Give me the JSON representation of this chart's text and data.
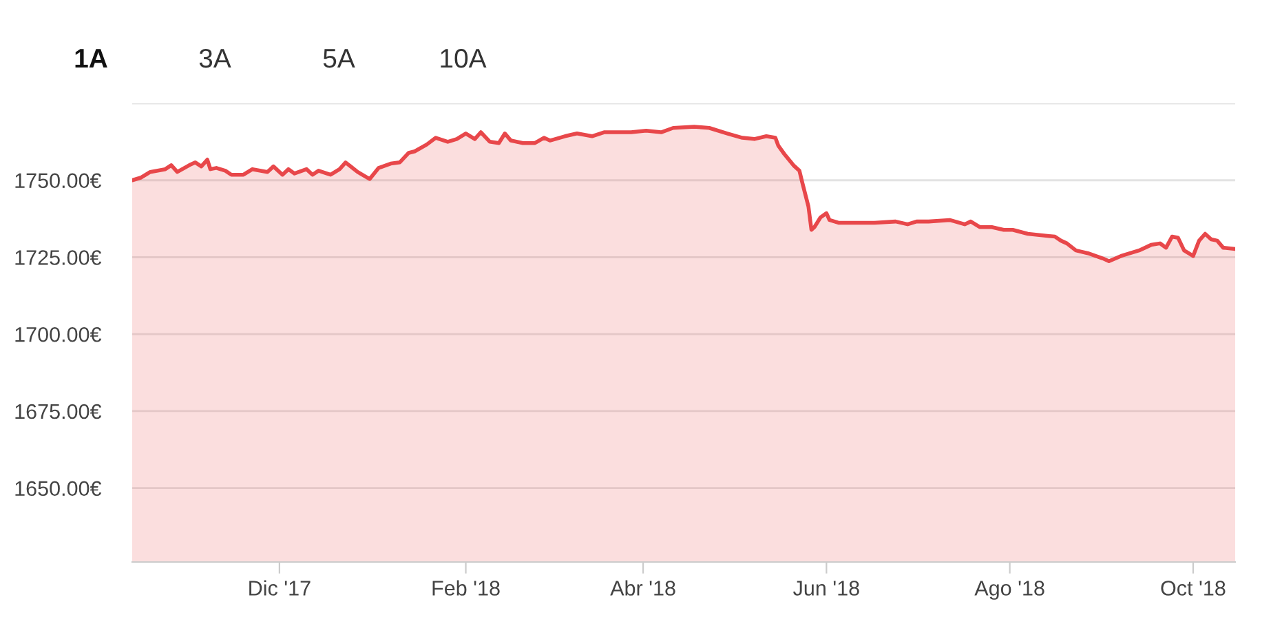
{
  "chart_data": {
    "type": "line",
    "annotations": [
      "1A",
      "3A",
      "5A",
      "10A"
    ],
    "x": [
      "2017-10-13",
      "2017-10-16",
      "2017-10-19",
      "2017-10-24",
      "2017-10-26",
      "2017-10-28",
      "2017-11-01",
      "2017-11-03",
      "2017-11-05",
      "2017-11-07",
      "2017-11-08",
      "2017-11-10",
      "2017-11-13",
      "2017-11-15",
      "2017-11-19",
      "2017-11-22",
      "2017-11-27",
      "2017-11-29",
      "2017-12-02",
      "2017-12-04",
      "2017-12-06",
      "2017-12-10",
      "2017-12-12",
      "2017-12-14",
      "2017-12-18",
      "2017-12-21",
      "2017-12-23",
      "2017-12-27",
      "2017-12-31",
      "2018-01-03",
      "2018-01-07",
      "2018-01-10",
      "2018-01-13",
      "2018-01-15",
      "2018-01-19",
      "2018-01-22",
      "2018-01-26",
      "2018-01-29",
      "2018-02-01",
      "2018-02-04",
      "2018-02-06",
      "2018-02-09",
      "2018-02-12",
      "2018-02-14",
      "2018-02-16",
      "2018-02-20",
      "2018-02-24",
      "2018-02-27",
      "2018-03-01",
      "2018-03-06",
      "2018-03-10",
      "2018-03-15",
      "2018-03-19",
      "2018-03-24",
      "2018-03-28",
      "2018-04-02",
      "2018-04-07",
      "2018-04-11",
      "2018-04-18",
      "2018-04-23",
      "2018-04-29",
      "2018-05-04",
      "2018-05-08",
      "2018-05-12",
      "2018-05-15",
      "2018-05-16",
      "2018-05-18",
      "2018-05-21",
      "2018-05-23",
      "2018-05-24",
      "2018-05-26",
      "2018-05-27",
      "2018-05-28",
      "2018-05-30",
      "2018-06-01",
      "2018-06-02",
      "2018-06-05",
      "2018-06-10",
      "2018-06-17",
      "2018-06-24",
      "2018-06-28",
      "2018-07-01",
      "2018-07-05",
      "2018-07-12",
      "2018-07-17",
      "2018-07-19",
      "2018-07-22",
      "2018-07-26",
      "2018-07-30",
      "2018-08-02",
      "2018-08-07",
      "2018-08-16",
      "2018-08-18",
      "2018-08-20",
      "2018-08-23",
      "2018-08-27",
      "2018-09-01",
      "2018-09-03",
      "2018-09-07",
      "2018-09-10",
      "2018-09-13",
      "2018-09-17",
      "2018-09-20",
      "2018-09-22",
      "2018-09-24",
      "2018-09-26",
      "2018-09-28",
      "2018-10-01",
      "2018-10-03",
      "2018-10-05",
      "2018-10-07",
      "2018-10-09",
      "2018-10-11",
      "2018-10-15"
    ],
    "series": [
      {
        "color": "#e8474a",
        "values": [
          1750.0,
          1750.9,
          1752.7,
          1753.6,
          1754.9,
          1752.7,
          1754.9,
          1755.8,
          1754.5,
          1756.7,
          1753.6,
          1754.0,
          1753.1,
          1751.8,
          1751.8,
          1753.6,
          1752.7,
          1754.5,
          1751.8,
          1753.6,
          1752.2,
          1753.6,
          1751.8,
          1753.1,
          1751.8,
          1753.6,
          1755.8,
          1752.7,
          1750.4,
          1754.0,
          1755.4,
          1755.8,
          1758.9,
          1759.4,
          1761.6,
          1763.8,
          1762.5,
          1763.4,
          1765.2,
          1763.4,
          1765.6,
          1762.5,
          1762.1,
          1765.2,
          1762.9,
          1762.1,
          1762.1,
          1763.8,
          1762.9,
          1764.3,
          1765.2,
          1764.3,
          1765.6,
          1765.6,
          1765.6,
          1766.1,
          1765.6,
          1767.0,
          1767.4,
          1767.0,
          1765.2,
          1763.8,
          1763.4,
          1764.3,
          1763.8,
          1761.2,
          1758.5,
          1754.9,
          1753.1,
          1749.1,
          1741.5,
          1733.9,
          1734.8,
          1737.9,
          1739.3,
          1737.1,
          1736.2,
          1736.2,
          1736.2,
          1736.6,
          1735.7,
          1736.6,
          1736.6,
          1737.1,
          1735.7,
          1736.6,
          1734.8,
          1734.8,
          1733.9,
          1733.9,
          1732.6,
          1731.7,
          1730.4,
          1729.5,
          1727.2,
          1726.3,
          1724.6,
          1723.7,
          1725.4,
          1726.3,
          1727.2,
          1729.0,
          1729.5,
          1728.1,
          1731.7,
          1731.3,
          1727.2,
          1725.4,
          1730.4,
          1732.6,
          1730.8,
          1730.4,
          1728.1,
          1727.7
        ]
      }
    ],
    "xlim": [
      "2017-10-13",
      "2018-10-15"
    ],
    "xticks": [
      {
        "value": "2017-12-01",
        "label": "Dic '17"
      },
      {
        "value": "2018-02-01",
        "label": "Feb '18"
      },
      {
        "value": "2018-04-01",
        "label": "Abr '18"
      },
      {
        "value": "2018-06-01",
        "label": "Jun '18"
      },
      {
        "value": "2018-08-01",
        "label": "Ago '18"
      },
      {
        "value": "2018-10-01",
        "label": "Oct '18"
      }
    ],
    "ylim": [
      1626,
      1775
    ],
    "yticks": [
      {
        "value": 1650,
        "label": "1650.00€"
      },
      {
        "value": 1675,
        "label": "1675.00€"
      },
      {
        "value": 1700,
        "label": "1700.00€"
      },
      {
        "value": 1725,
        "label": "1725.00€"
      },
      {
        "value": 1750,
        "label": "1750.00€"
      },
      {
        "value": 1775,
        "label": null
      }
    ],
    "grid": "y",
    "legend": false
  }
}
